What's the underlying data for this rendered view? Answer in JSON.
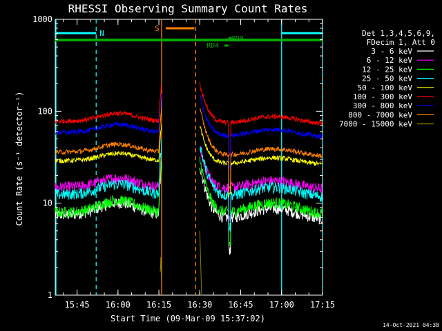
{
  "chart_data": {
    "type": "line",
    "title": "RHESSI Observing Summary Count Rates",
    "xlabel": "Start Time (09-Mar-09 15:37:02)",
    "ylabel": "Count Rate (s⁻¹ detector⁻¹)",
    "yscale": "log",
    "ylim": [
      1,
      1000
    ],
    "xlim_min": [
      0,
      98
    ],
    "x_ticks": [
      {
        "t": 8,
        "label": "15:45"
      },
      {
        "t": 23,
        "label": "16:00"
      },
      {
        "t": 38,
        "label": "16:15"
      },
      {
        "t": 53,
        "label": "16:30"
      },
      {
        "t": 68,
        "label": "16:45"
      },
      {
        "t": 83,
        "label": "17:00"
      },
      {
        "t": 98,
        "label": "17:15"
      }
    ],
    "y_ticks": [
      {
        "v": 1,
        "label": "1"
      },
      {
        "v": 10,
        "label": "10"
      },
      {
        "v": 100,
        "label": "100"
      },
      {
        "v": 1000,
        "label": "1000"
      }
    ],
    "legend_header": [
      "Det 1,3,4,5,6,9,",
      "FDecim 1, Att 0"
    ],
    "legend_position": "right",
    "series": [
      {
        "name": "3 - 6 keV",
        "color": "#ffffff",
        "base": 7.5,
        "bump": 1.35,
        "flare": 26,
        "post_base": 6.5
      },
      {
        "name": "6 - 12 keV",
        "color": "#ff00ff",
        "base": 15,
        "bump": 1.25,
        "flare": 40,
        "post_base": 14
      },
      {
        "name": "12 - 25 keV",
        "color": "#00ff00",
        "base": 8,
        "bump": 1.35,
        "flare": 30,
        "post_base": 7.5
      },
      {
        "name": "25 - 50 keV",
        "color": "#00ffff",
        "base": 12.5,
        "bump": 1.3,
        "flare": 45,
        "post_base": 11.5
      },
      {
        "name": "50 - 100 keV",
        "color": "#ffff00",
        "base": 29,
        "bump": 1.2,
        "flare": 70,
        "post_base": 26
      },
      {
        "name": "100 - 300 keV",
        "color": "#ff0000",
        "base": 78,
        "bump": 1.22,
        "flare": 200,
        "post_base": 72
      },
      {
        "name": "300 - 800 keV",
        "color": "#0000ff",
        "base": 59,
        "bump": 1.22,
        "flare": 150,
        "post_base": 52
      },
      {
        "name": "800 - 7000 keV",
        "color": "#ff8000",
        "base": 36,
        "bump": 1.22,
        "flare": 110,
        "post_base": 32
      },
      {
        "name": "7000 - 15000 keV",
        "color": "#808000",
        "base": 0,
        "bump": 1,
        "flare": 5,
        "post_base": 0
      }
    ],
    "gaps_min": [
      [
        39,
        53
      ]
    ],
    "night_intervals_min": [
      [
        0,
        15
      ]
    ],
    "saa_intervals_min": [
      [
        83,
        98
      ]
    ],
    "vertical_markers": [
      {
        "t": 15,
        "color": "#00ffff",
        "style": "dashed"
      },
      {
        "t": 83,
        "color": "#00ffff",
        "style": "solid"
      },
      {
        "t": 98,
        "color": "#00ffff",
        "style": "dashed"
      },
      {
        "t": 39,
        "color": "#ff8000",
        "style": "solid"
      },
      {
        "t": 51.5,
        "color": "#ff8000",
        "style": "dashed"
      }
    ],
    "annotations": [
      {
        "text": "N",
        "color": "#00ffff"
      },
      {
        "text": "S",
        "color": "#ff8000"
      },
      {
        "text": "RD0",
        "color": "#00aa00"
      },
      {
        "text": "RD4",
        "color": "#00aa00"
      }
    ],
    "timestamp": "14-Oct-2021 04:38"
  }
}
